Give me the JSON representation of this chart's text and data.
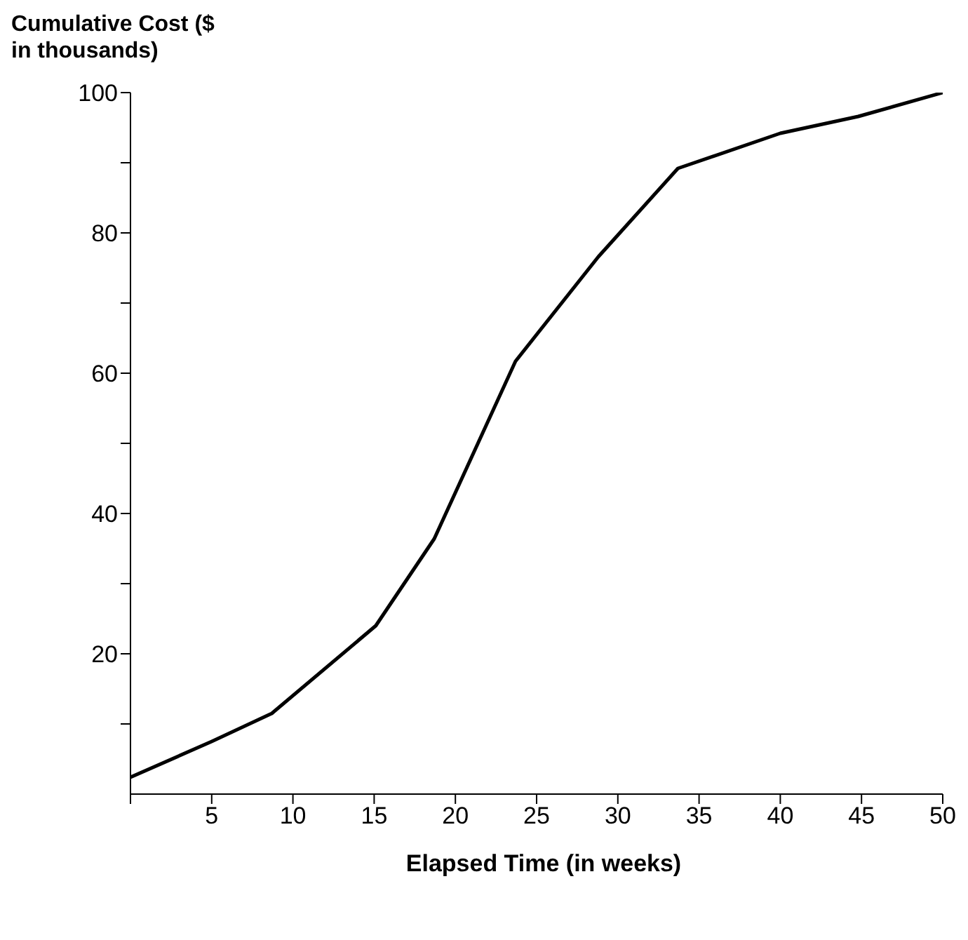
{
  "chart_data": {
    "type": "line",
    "xlabel": "Elapsed Time (in weeks)",
    "ylabel": "Cumulative Cost ($ in thousands)",
    "x": [
      0,
      5,
      8.7,
      15.1,
      18.7,
      23.7,
      28.8,
      33.7,
      40,
      44.8,
      50
    ],
    "series": [
      {
        "color": "#000000",
        "values": [
          2.4,
          7.5,
          11.5,
          24,
          36.4,
          61.7,
          76.6,
          89.2,
          94.2,
          96.6,
          100
        ]
      }
    ],
    "xlim": [
      0,
      50
    ],
    "xticks": [
      {
        "value": 0,
        "label": null
      },
      5,
      10,
      15,
      20,
      25,
      30,
      35,
      40,
      45,
      50
    ],
    "ylim": [
      0,
      100
    ],
    "yticks": [
      {
        "value": 10,
        "label": null
      },
      20,
      {
        "value": 30,
        "label": null
      },
      40,
      {
        "value": 50,
        "label": null
      },
      60,
      {
        "value": 70,
        "label": null
      },
      80,
      {
        "value": 90,
        "label": null
      },
      100
    ],
    "grid": false,
    "legend": false,
    "marker": "none",
    "line_style": "solid"
  }
}
